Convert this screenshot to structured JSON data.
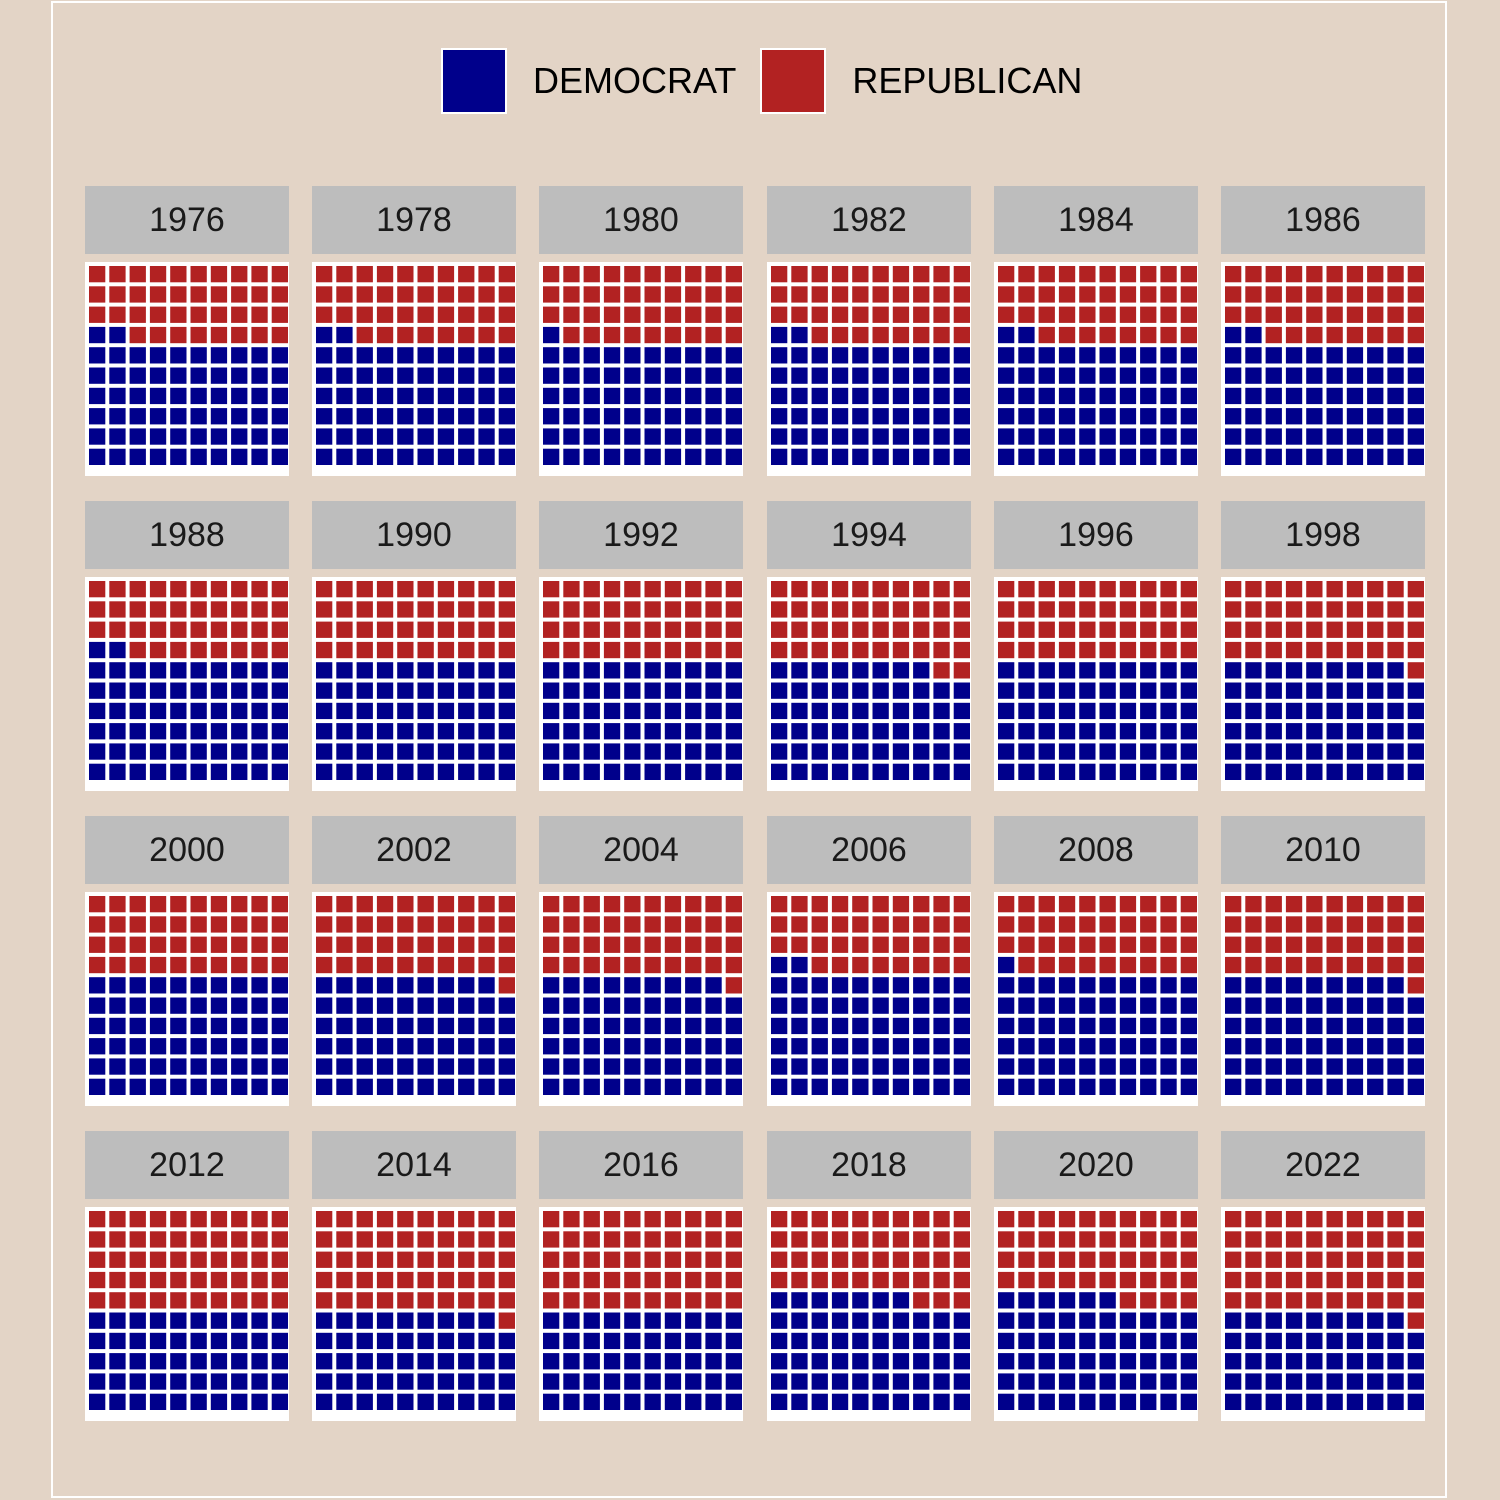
{
  "chart_data": {
    "type": "waffle",
    "grid": "10x10",
    "legend_position": "top",
    "legend": [
      {
        "name": "DEMOCRAT",
        "color": "#00008b"
      },
      {
        "name": "REPUBLICAN",
        "color": "#b22222"
      }
    ],
    "unit": "squares out of 100",
    "panels": [
      {
        "year": "1976",
        "democrat": 62,
        "republican": 38
      },
      {
        "year": "1978",
        "democrat": 62,
        "republican": 38
      },
      {
        "year": "1980",
        "democrat": 61,
        "republican": 39
      },
      {
        "year": "1982",
        "democrat": 62,
        "republican": 38
      },
      {
        "year": "1984",
        "democrat": 62,
        "republican": 38
      },
      {
        "year": "1986",
        "democrat": 62,
        "republican": 38
      },
      {
        "year": "1988",
        "democrat": 62,
        "republican": 38
      },
      {
        "year": "1990",
        "democrat": 60,
        "republican": 40
      },
      {
        "year": "1992",
        "democrat": 60,
        "republican": 40
      },
      {
        "year": "1994",
        "democrat": 58,
        "republican": 42
      },
      {
        "year": "1996",
        "democrat": 60,
        "republican": 40
      },
      {
        "year": "1998",
        "democrat": 59,
        "republican": 41
      },
      {
        "year": "2000",
        "democrat": 60,
        "republican": 40
      },
      {
        "year": "2002",
        "democrat": 59,
        "republican": 41
      },
      {
        "year": "2004",
        "democrat": 59,
        "republican": 41
      },
      {
        "year": "2006",
        "democrat": 62,
        "republican": 38
      },
      {
        "year": "2008",
        "democrat": 61,
        "republican": 39
      },
      {
        "year": "2010",
        "democrat": 59,
        "republican": 41
      },
      {
        "year": "2012",
        "democrat": 50,
        "republican": 50
      },
      {
        "year": "2014",
        "democrat": 49,
        "republican": 51
      },
      {
        "year": "2016",
        "democrat": 50,
        "republican": 50
      },
      {
        "year": "2018",
        "democrat": 57,
        "republican": 43
      },
      {
        "year": "2020",
        "democrat": 56,
        "republican": 44
      },
      {
        "year": "2022",
        "democrat": 49,
        "republican": 51
      }
    ]
  }
}
